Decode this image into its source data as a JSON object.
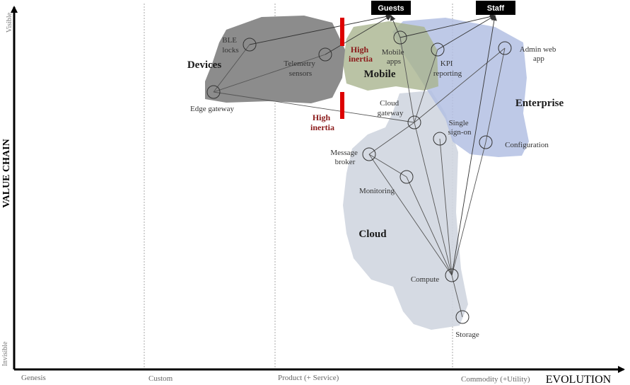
{
  "axes": {
    "y_label": "VALUE CHAIN",
    "x_label": "EVOLUTION",
    "y_top": "Visible",
    "y_bottom": "Invisible",
    "stages": [
      "Genesis",
      "Custom",
      "Product (+ Service)",
      "Commodity (+Utility)"
    ]
  },
  "regions": {
    "devices": "Devices",
    "mobile": "Mobile",
    "enterprise": "Enterprise",
    "cloud": "Cloud"
  },
  "users": {
    "guests": "Guests",
    "staff": "Staff"
  },
  "inertia": {
    "top_line1": "High",
    "top_line2": "inertia",
    "bottom_line1": "High",
    "bottom_line2": "inertia"
  },
  "components": {
    "ble_locks": [
      "BLE",
      "locks"
    ],
    "telemetry_sensors": [
      "Telemetry",
      "sensors"
    ],
    "edge_gateway": [
      "Edge gateway"
    ],
    "mobile_apps": [
      "Mobile",
      "apps"
    ],
    "kpi_reporting": [
      "KPI",
      "reporting"
    ],
    "admin_web_app": [
      "Admin web",
      "app"
    ],
    "cloud_gateway": [
      "Cloud",
      "gateway"
    ],
    "single_sign_on": [
      "Single",
      "sign-on"
    ],
    "message_broker": [
      "Message",
      "broker"
    ],
    "monitoring": [
      "Monitoring"
    ],
    "configuration": [
      "Configuration"
    ],
    "compute": [
      "Compute"
    ],
    "storage": [
      "Storage"
    ]
  },
  "colors": {
    "devices_region": "#8c8c8c",
    "mobile_region": "#a9b48e",
    "enterprise_region": "#b3bfe3",
    "cloud_region": "#d0d6e0",
    "inertia_bar": "#dd0000",
    "inertia_text": "#8b1a1a"
  }
}
